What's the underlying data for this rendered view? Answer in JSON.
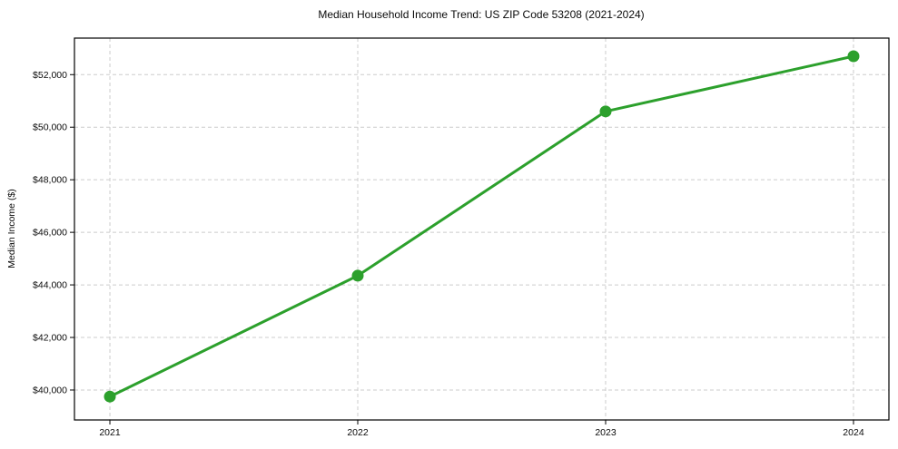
{
  "chart_data": {
    "type": "line",
    "title": "Median Household Income Trend: US ZIP Code 53208 (2021-2024)",
    "xlabel": "",
    "ylabel": "Median Income ($)",
    "x": [
      2021,
      2022,
      2023,
      2024
    ],
    "x_labels": [
      "2021",
      "2022",
      "2023",
      "2024"
    ],
    "series": [
      {
        "name": "Median Household Income",
        "values": [
          39750,
          44350,
          50600,
          52700
        ]
      }
    ],
    "yticks": [
      {
        "value": 40000,
        "label": "$40,000"
      },
      {
        "value": 42000,
        "label": "$42,000"
      },
      {
        "value": 44000,
        "label": "$44,000"
      },
      {
        "value": 46000,
        "label": "$46,000"
      },
      {
        "value": 48000,
        "label": "$48,000"
      },
      {
        "value": 50000,
        "label": "$50,000"
      },
      {
        "value": 52000,
        "label": "$52,000"
      }
    ],
    "ylim": [
      38860,
      53390
    ],
    "grid": true,
    "legend": "none",
    "line_color": "#2ca02c",
    "marker": "circle",
    "marker_size": 6.5,
    "line_width": 3,
    "grid_color": "#cccccc",
    "grid_dash": "4 3",
    "axis_color": "#000000",
    "background": "#ffffff"
  }
}
